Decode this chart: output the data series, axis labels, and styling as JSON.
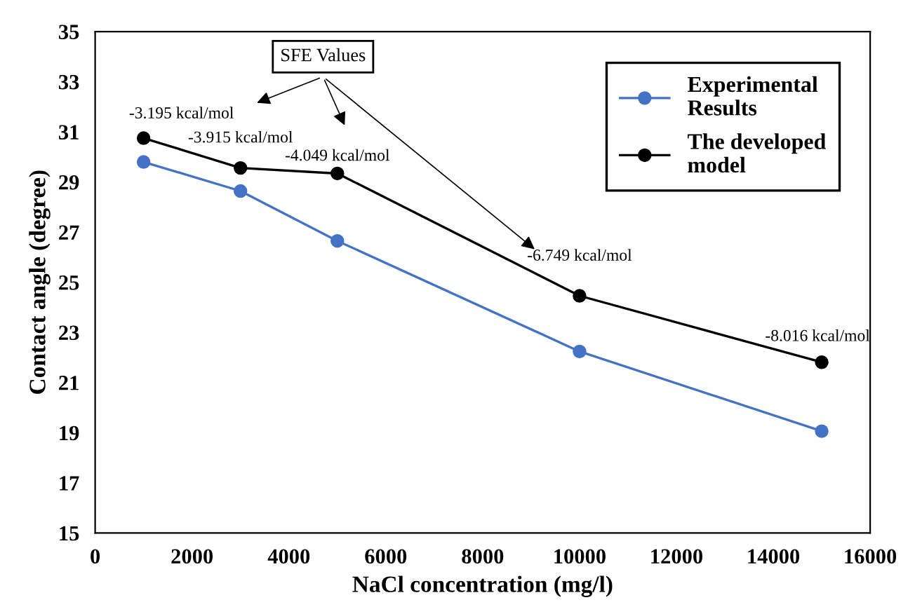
{
  "chart_data": {
    "type": "line",
    "xlabel": "NaCl concentration (mg/l)",
    "ylabel": "Contact angle (degree)",
    "x": [
      1000,
      3000,
      5000,
      10000,
      15000
    ],
    "series": [
      {
        "name": "Experimental\nResults",
        "color": "#4472c4",
        "values": [
          29.8,
          28.64,
          26.65,
          22.24,
          19.06
        ]
      },
      {
        "name": "The developed\nmodel",
        "color": "#000000",
        "values": [
          30.75,
          29.56,
          29.34,
          24.46,
          21.81
        ]
      }
    ],
    "xlim": [
      0,
      16000
    ],
    "xticks": [
      0,
      2000,
      4000,
      6000,
      8000,
      10000,
      12000,
      14000,
      16000
    ],
    "ylim": [
      15,
      35
    ],
    "yticks": [
      15,
      17,
      19,
      21,
      23,
      25,
      27,
      29,
      31,
      33,
      35
    ],
    "annotations": [
      "SFE Values",
      {
        "text": "-3.195 kcal/mol",
        "x": 1000,
        "y": 30.75
      },
      {
        "text": "-3.915 kcal/mol",
        "x": 3000,
        "y": 29.56
      },
      {
        "text": "-4.049 kcal/mol",
        "x": 5000,
        "y": 29.34
      },
      {
        "text": "-6.749 kcal/mol",
        "x": 10000,
        "y": 24.46
      },
      {
        "text": "-8.016 kcal/mol",
        "x": 15000,
        "y": 21.81
      }
    ],
    "legend": "top right",
    "grid": false,
    "marker": "circle",
    "line_style": "solid"
  }
}
